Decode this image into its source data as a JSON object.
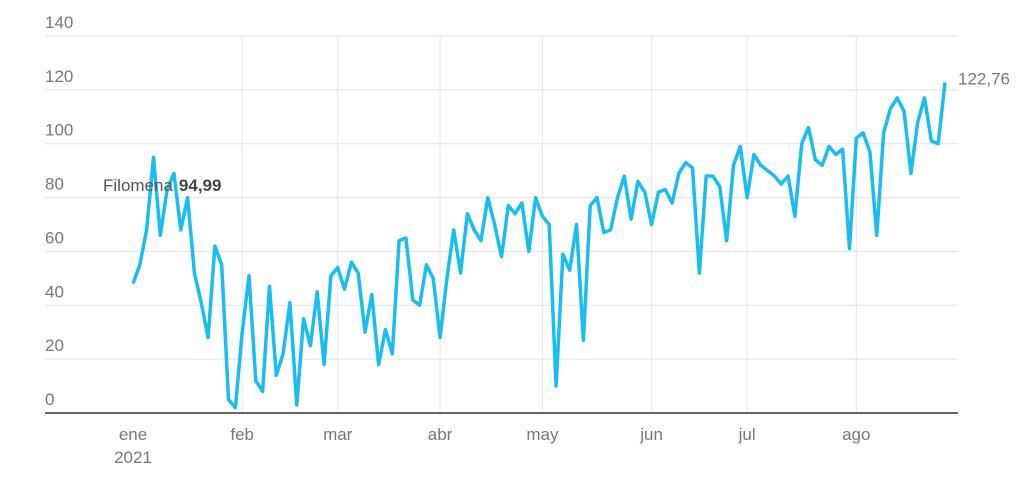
{
  "chart_data": {
    "type": "line",
    "color": "#19bdf2",
    "grid": true,
    "categories": [
      "ene",
      null,
      null,
      null,
      null,
      null,
      null,
      null,
      null,
      null,
      null,
      null,
      null,
      null,
      null,
      null,
      "feb",
      null,
      null,
      null,
      null,
      null,
      null,
      null,
      null,
      null,
      null,
      null,
      null,
      null,
      "mar",
      null,
      null,
      null,
      null,
      null,
      null,
      null,
      null,
      null,
      null,
      null,
      null,
      null,
      null,
      "abr",
      null,
      null,
      null,
      null,
      null,
      null,
      null,
      null,
      null,
      null,
      null,
      null,
      null,
      null,
      "may",
      null,
      null,
      null,
      null,
      null,
      null,
      null,
      null,
      null,
      null,
      null,
      null,
      null,
      null,
      null,
      "jun",
      null,
      null,
      null,
      null,
      null,
      null,
      null,
      null,
      null,
      null,
      null,
      null,
      null,
      "jul",
      null,
      null,
      null,
      null,
      null,
      null,
      null,
      null,
      null,
      null,
      null,
      null,
      null,
      null,
      null,
      "ago",
      null,
      null,
      null,
      null,
      null,
      null,
      null,
      null,
      null,
      null,
      null,
      null,
      null
    ],
    "x_axis_year": "2021",
    "values": [
      48,
      55,
      68,
      94.99,
      66,
      83,
      89,
      68,
      80,
      52,
      41,
      28,
      62,
      55,
      5,
      2,
      30,
      51,
      12,
      8,
      47,
      14,
      22,
      41,
      3,
      35,
      25,
      45,
      18,
      51,
      54,
      46,
      56,
      52,
      30,
      44,
      18,
      31,
      22,
      64,
      65,
      42,
      40,
      55,
      50,
      28,
      50,
      68,
      52,
      74,
      68,
      64,
      80,
      70,
      58,
      77,
      74,
      78,
      60,
      80,
      73,
      70,
      10,
      59,
      53,
      70,
      27,
      77,
      80,
      67,
      68,
      80,
      88,
      72,
      86,
      82,
      70,
      82,
      83,
      78,
      89,
      93,
      91,
      52,
      88,
      88,
      84,
      64,
      92,
      99,
      80,
      96,
      92,
      90,
      88,
      85,
      88,
      73,
      100,
      106,
      94,
      92,
      99,
      96,
      98,
      61,
      102,
      104,
      97,
      66,
      104,
      113,
      117,
      112,
      89,
      108,
      117,
      101,
      100,
      122.76
    ],
    "ylim": [
      0,
      140
    ],
    "yticks": [
      0,
      20,
      40,
      60,
      80,
      100,
      120,
      140
    ],
    "annotation": {
      "text": "Filomena",
      "value": 94.99,
      "label": "94,99"
    },
    "end_label": {
      "value": 122.76,
      "label": "122,76"
    }
  }
}
